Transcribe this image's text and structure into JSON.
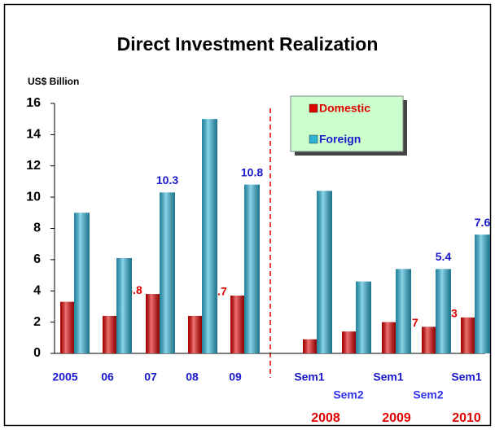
{
  "chart_data": {
    "type": "bar",
    "title": "Direct Investment Realization",
    "y_axis_label": "US$ Billion",
    "categories": [
      "2005",
      "06",
      "07",
      "08",
      "09",
      "Sem1",
      "Sem2",
      "Sem1",
      "Sem2",
      "Sem1"
    ],
    "group_labels": [
      "2008",
      "2009",
      "2010"
    ],
    "series": [
      {
        "name": "Domestic",
        "color": "#e00000",
        "values": [
          3.3,
          2.4,
          3.8,
          2.4,
          3.7,
          0.9,
          1.4,
          2.0,
          1.7,
          2.3
        ],
        "value_labels": [
          null,
          null,
          "3.8",
          null,
          "3.7",
          null,
          null,
          null,
          "1.7",
          "2.3"
        ]
      },
      {
        "name": "Foreign",
        "color": "#2fb4d8",
        "values": [
          9.0,
          6.1,
          10.3,
          15.0,
          10.8,
          10.4,
          4.6,
          5.4,
          5.4,
          7.6
        ],
        "value_labels": [
          null,
          null,
          "10.3",
          null,
          "10.8",
          null,
          null,
          null,
          "5.4",
          "7.6"
        ]
      }
    ],
    "ylim": [
      0,
      16
    ],
    "yticks": [
      0,
      2,
      4,
      6,
      8,
      10,
      12,
      14,
      16
    ],
    "legend": "top-right"
  }
}
